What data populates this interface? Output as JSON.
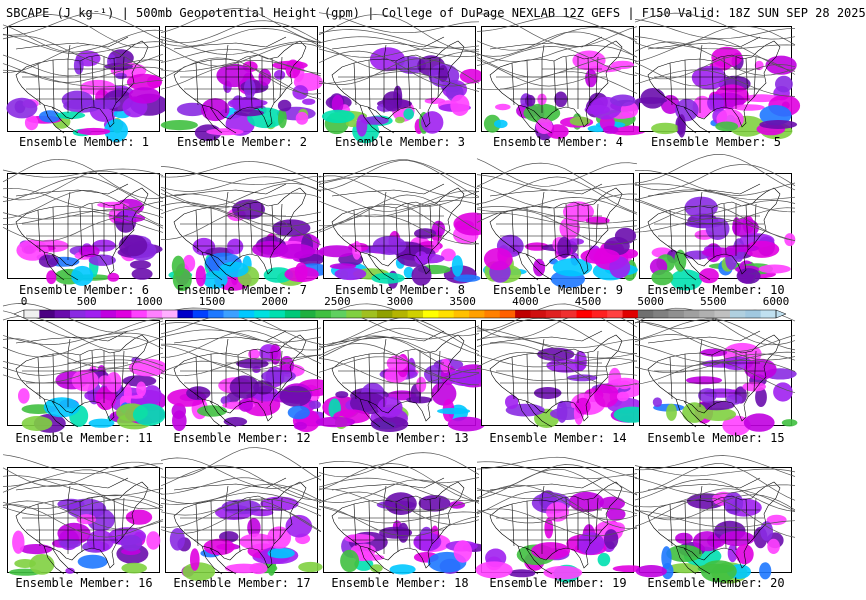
{
  "header": {
    "title": "SBCAPE (J kg⁻¹) | 500mb Geopotential Height (gpm) | College of DuPage NEXLAB 12Z GEFS | F150 Valid: 18Z SUN SEP 28 2025"
  },
  "members": [
    {
      "label": "Ensemble Member: 1"
    },
    {
      "label": "Ensemble Member: 2"
    },
    {
      "label": "Ensemble Member: 3"
    },
    {
      "label": "Ensemble Member: 4"
    },
    {
      "label": "Ensemble Member: 5"
    },
    {
      "label": "Ensemble Member: 6"
    },
    {
      "label": "Ensemble Member: 7"
    },
    {
      "label": "Ensemble Member: 8"
    },
    {
      "label": "Ensemble Member: 9"
    },
    {
      "label": "Ensemble Member: 10"
    },
    {
      "label": "Ensemble Member: 11"
    },
    {
      "label": "Ensemble Member: 12"
    },
    {
      "label": "Ensemble Member: 13"
    },
    {
      "label": "Ensemble Member: 14"
    },
    {
      "label": "Ensemble Member: 15"
    },
    {
      "label": "Ensemble Member: 16"
    },
    {
      "label": "Ensemble Member: 17"
    },
    {
      "label": "Ensemble Member: 18"
    },
    {
      "label": "Ensemble Member: 19"
    },
    {
      "label": "Ensemble Member: 20"
    }
  ],
  "colorbar": {
    "labels": [
      "0",
      "500",
      "1000",
      "1500",
      "2000",
      "2500",
      "3000",
      "3500",
      "4000",
      "4500",
      "5000",
      "5500",
      "6000"
    ],
    "colors": [
      "#f0f0f0",
      "#4b0082",
      "#6a0dad",
      "#8a2be2",
      "#a020f0",
      "#c000e0",
      "#e000e0",
      "#ff40ff",
      "#ff80ff",
      "#ffb0ff",
      "#0000c8",
      "#0040ff",
      "#1e78ff",
      "#3ca0ff",
      "#00c8ff",
      "#00e0e0",
      "#00e0b0",
      "#00c878",
      "#20b040",
      "#40c040",
      "#60d060",
      "#80d040",
      "#a0c020",
      "#90a000",
      "#b4b400",
      "#d0d000",
      "#ffff00",
      "#ffe000",
      "#ffc000",
      "#ffa000",
      "#ff8000",
      "#ff6000",
      "#c00000",
      "#d01010",
      "#e02020",
      "#f03030",
      "#ff0000",
      "#ff2020",
      "#ff4040",
      "#e00000",
      "#707070",
      "#808080",
      "#909090",
      "#a0a0a0",
      "#b0b0b0",
      "#c0c0c0",
      "#b0d0e0",
      "#a0c8e0",
      "#c0e0f0"
    ]
  }
}
